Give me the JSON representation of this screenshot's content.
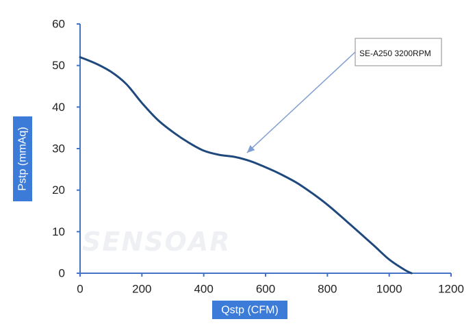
{
  "colors": {
    "axis": "#4472c4",
    "curve": "#1f497d",
    "label_bg": "#3d7bd8",
    "arrow": "#7f9fd0",
    "watermark": "#eef0f3"
  },
  "watermark_text": "SENSOAR",
  "chart_data": {
    "type": "line",
    "title": "",
    "xlabel": "Qstp (CFM)",
    "ylabel": "Pstp (mmAq)",
    "xlim": [
      0,
      1200
    ],
    "ylim": [
      0,
      60
    ],
    "xticks": [
      0,
      200,
      400,
      600,
      800,
      1000,
      1200
    ],
    "yticks": [
      0,
      10,
      20,
      30,
      40,
      50,
      60
    ],
    "grid": false,
    "legend": "none",
    "series": [
      {
        "name": "SE-A250 3200RPM",
        "x": [
          0,
          50,
          100,
          150,
          200,
          250,
          300,
          350,
          400,
          450,
          500,
          550,
          600,
          650,
          700,
          750,
          800,
          850,
          900,
          950,
          1000,
          1050,
          1072
        ],
        "y": [
          52,
          50.5,
          48.5,
          45.5,
          41,
          37,
          34,
          31.5,
          29.5,
          28.5,
          28,
          27,
          25.5,
          23.8,
          21.8,
          19.3,
          16.5,
          13.3,
          10,
          6.7,
          3.3,
          0.8,
          0
        ]
      }
    ],
    "annotations": [
      {
        "text": "SE-A250 3200RPM",
        "points_to": {
          "x": 540,
          "y": 29
        }
      }
    ]
  }
}
